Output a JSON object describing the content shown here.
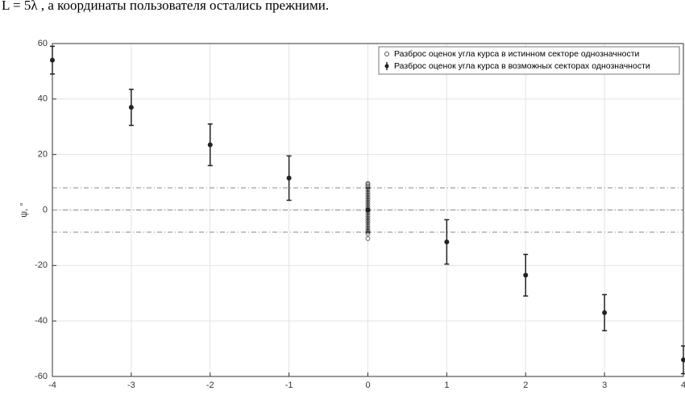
{
  "caption": "L = 5λ  , а координаты пользователя остались прежними.",
  "chart_data": {
    "type": "errorbar",
    "ylabel": "ψ, °",
    "xlim": [
      -4,
      4
    ],
    "xticks": [
      -4,
      -3,
      -2,
      -1,
      0,
      1,
      2,
      3,
      4
    ],
    "ylim": [
      -60,
      60
    ],
    "yticks": [
      -60,
      -40,
      -20,
      0,
      20,
      40,
      60
    ],
    "grid": true,
    "legend": "upper right",
    "hlines": [
      -8,
      0,
      8
    ],
    "series": [
      {
        "name": "Разброс оценок угла курса в истинном секторе однозначности",
        "color": "#555555",
        "x": [
          0,
          0,
          0,
          0,
          0,
          0,
          0,
          0,
          0,
          0,
          0,
          0,
          0,
          0,
          0,
          0,
          0,
          0,
          0,
          0,
          0,
          0,
          0,
          0,
          0
        ],
        "values": [
          -10.3,
          -8.6,
          -7.9,
          -7.2,
          -6.4,
          -5.5,
          -4.6,
          -3.8,
          -2.9,
          -2.1,
          -1.2,
          -0.4,
          0.5,
          1.3,
          2.2,
          3.0,
          3.9,
          4.7,
          5.6,
          6.4,
          7.3,
          8.1,
          8.7,
          9.2,
          9.6
        ]
      },
      {
        "name": "Разброс оценок угла курса в возможных секторах однозначности",
        "color": "#222222",
        "x": [
          -4,
          -3,
          -2,
          -1,
          0,
          1,
          2,
          3,
          4
        ],
        "values": [
          54,
          37,
          23.5,
          11.5,
          0,
          -11.5,
          -23.5,
          -37,
          -54
        ],
        "errors": [
          5,
          6.5,
          7.5,
          8,
          8,
          8,
          7.5,
          6.5,
          5
        ]
      }
    ]
  }
}
